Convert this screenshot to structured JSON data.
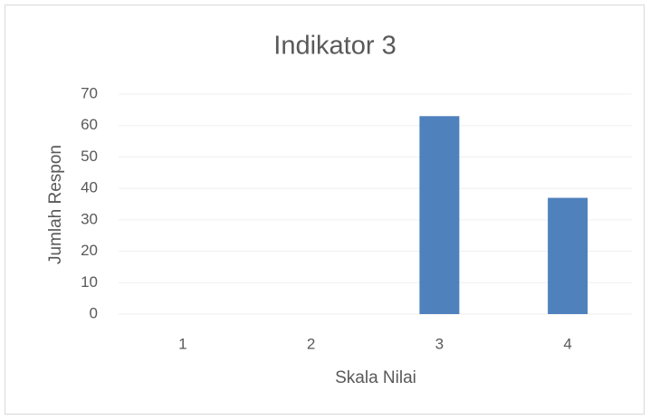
{
  "chart_data": {
    "type": "bar",
    "title": "Indikator 3",
    "x_label": "Skala Nilai",
    "y_label": "Jumlah Respon",
    "categories": [
      "1",
      "2",
      "3",
      "4"
    ],
    "values": [
      0,
      0,
      63,
      37
    ],
    "color": "#4f81bd",
    "ylim": [
      0,
      70
    ],
    "yticks": [
      0,
      10,
      20,
      30,
      40,
      50,
      60,
      70
    ],
    "grid": true
  }
}
